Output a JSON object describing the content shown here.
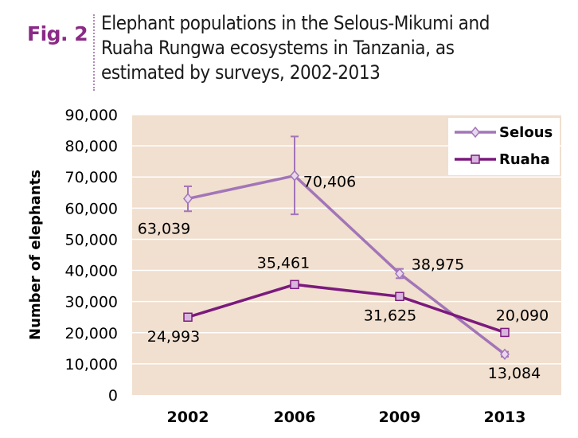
{
  "figure": {
    "label": "Fig. 2",
    "title": "Elephant populations in the Selous-Mikumi and Ruaha Rungwa ecosystems in Tanzania, as estimated by surveys, 2002-2013"
  },
  "colors": {
    "plot_background": "#f1dfcf",
    "gridline": "#ffffff",
    "fig_label": "#8a2a86",
    "selous": "#a275b8",
    "ruaha": "#7b1a7d",
    "ruaha_marker_fill": "#d8b5de"
  },
  "chart_data": {
    "type": "line",
    "categories": [
      "2002",
      "2006",
      "2009",
      "2013"
    ],
    "ylabel": "Number of elephants",
    "ylim": [
      0,
      90000
    ],
    "yticks": [
      0,
      10000,
      20000,
      30000,
      40000,
      50000,
      60000,
      70000,
      80000,
      90000
    ],
    "ytick_labels": [
      "0",
      "10,000",
      "20,000",
      "30,000",
      "40,000",
      "50,000",
      "60,000",
      "70,000",
      "80,000",
      "90,000"
    ],
    "grid": "horizontal",
    "legend_position": "top-right",
    "series": [
      {
        "name": "Selous",
        "marker": "diamond",
        "values": [
          63039,
          70406,
          38975,
          13084
        ],
        "labels": [
          "63,039",
          "70,406",
          "38,975",
          "13,084"
        ],
        "error_bars": [
          [
            59000,
            67000
          ],
          [
            58000,
            83000
          ],
          [
            37500,
            40500
          ],
          [
            12300,
            13900
          ]
        ]
      },
      {
        "name": "Ruaha",
        "marker": "square",
        "values": [
          24993,
          35461,
          31625,
          20090
        ],
        "labels": [
          "24,993",
          "35,461",
          "31,625",
          "20,090"
        ]
      }
    ]
  }
}
